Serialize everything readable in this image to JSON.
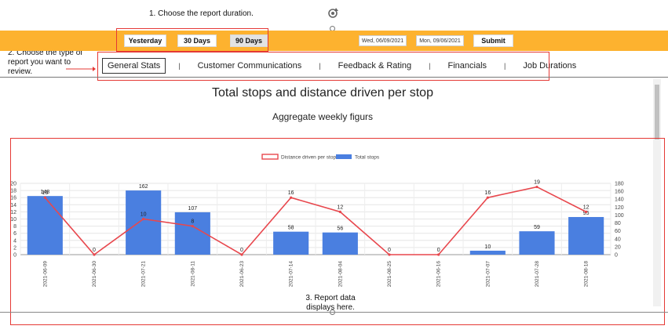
{
  "annotations": {
    "step1": "1. Choose the report duration.",
    "step2": "2. Choose the type of report you want to review.",
    "step3": "3. Report data displays here."
  },
  "toolbar": {
    "yesterday_label": "Yesterday",
    "thirty_label": "30 Days",
    "ninety_label": "90 Days",
    "start_date": "Wed, 06/09/2021",
    "end_date": "Mon, 09/06/2021",
    "submit_label": "Submit",
    "color": "#fdb22f"
  },
  "tabs": [
    {
      "label": "General Stats",
      "active": true
    },
    {
      "label": "Customer Communications",
      "active": false
    },
    {
      "label": "Feedback & Rating",
      "active": false
    },
    {
      "label": "Financials",
      "active": false
    },
    {
      "label": "Job Durations",
      "active": false
    }
  ],
  "tab_separator": "|",
  "report": {
    "title": "Total stops and distance driven per stop",
    "subtitle": "Aggregate weekly figurs"
  },
  "chart_data": {
    "type": "bar",
    "categories": [
      "2021-06-09",
      "2021-06-30",
      "2021-07-21",
      "2021-08-11",
      "2021-06-23",
      "2021-07-14",
      "2021-08-04",
      "2021-08-25",
      "2021-06-16",
      "2021-07-07",
      "2021-07-28",
      "2021-08-18"
    ],
    "series": [
      {
        "name": "Distance driven per stop",
        "kind": "line",
        "axis": "left",
        "color": "#e8474d",
        "values": [
          16,
          0,
          10,
          8,
          0,
          16,
          12,
          0,
          0,
          16,
          19,
          12
        ],
        "labels": [
          "16",
          "0",
          "10",
          "8",
          "0",
          "16",
          "12",
          "0",
          "0",
          "16",
          "19",
          "12"
        ]
      },
      {
        "name": "Total stops",
        "kind": "bar",
        "axis": "right",
        "color": "#4a7fe0",
        "values": [
          148,
          0,
          162,
          107,
          0,
          58,
          56,
          0,
          0,
          10,
          59,
          95
        ],
        "labels": [
          "148",
          "",
          "162",
          "107",
          "",
          "58",
          "56",
          "",
          "",
          "10",
          "59",
          "95"
        ]
      }
    ],
    "yleft": {
      "ticks": [
        "0",
        "2",
        "4",
        "6",
        "8",
        "10",
        "12",
        "14",
        "16",
        "18",
        "20"
      ],
      "lim": [
        0,
        20
      ]
    },
    "yright": {
      "ticks": [
        "0",
        "20",
        "40",
        "60",
        "80",
        "100",
        "120",
        "140",
        "160",
        "180"
      ],
      "lim": [
        0,
        180
      ]
    },
    "grid": true,
    "legend": "top-center"
  }
}
